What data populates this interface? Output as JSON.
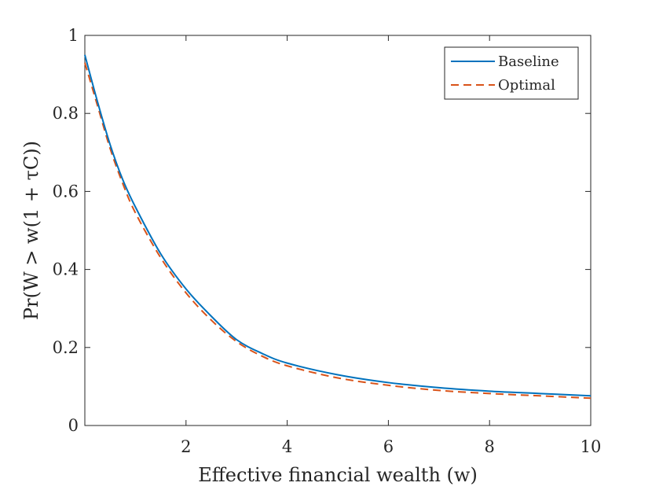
{
  "chart_data": {
    "type": "line",
    "xlabel": "Effective financial wealth (w)",
    "ylabel": "Pr(W > w(1 + τC))",
    "xlim": [
      0,
      10
    ],
    "ylim": [
      0,
      1
    ],
    "xticks": [
      2,
      4,
      6,
      8,
      10
    ],
    "yticks": [
      0,
      0.2,
      0.4,
      0.6,
      0.8,
      1
    ],
    "xtick_labels": [
      "2",
      "4",
      "6",
      "8",
      "10"
    ],
    "ytick_labels": [
      "0",
      "0.2",
      "0.4",
      "0.6",
      "0.8",
      "1"
    ],
    "grid": false,
    "legend_position": "top-right",
    "series": [
      {
        "name": "Baseline",
        "color": "#0072BD",
        "style": "solid",
        "x": [
          0,
          0.25,
          0.5,
          0.75,
          1.0,
          1.5,
          2.0,
          2.5,
          3.0,
          3.5,
          4.0,
          5.0,
          6.0,
          7.0,
          8.0,
          9.0,
          10.0
        ],
        "y": [
          0.95,
          0.83,
          0.72,
          0.63,
          0.56,
          0.44,
          0.35,
          0.28,
          0.22,
          0.185,
          0.16,
          0.13,
          0.11,
          0.097,
          0.088,
          0.082,
          0.076
        ]
      },
      {
        "name": "Optimal",
        "color": "#D95319",
        "style": "dashed",
        "x": [
          0,
          0.25,
          0.5,
          0.75,
          1.0,
          1.5,
          2.0,
          2.5,
          3.0,
          3.5,
          4.0,
          5.0,
          6.0,
          7.0,
          8.0,
          9.0,
          10.0
        ],
        "y": [
          0.93,
          0.82,
          0.71,
          0.62,
          0.545,
          0.43,
          0.34,
          0.27,
          0.215,
          0.178,
          0.153,
          0.122,
          0.103,
          0.09,
          0.082,
          0.076,
          0.07
        ]
      }
    ]
  }
}
